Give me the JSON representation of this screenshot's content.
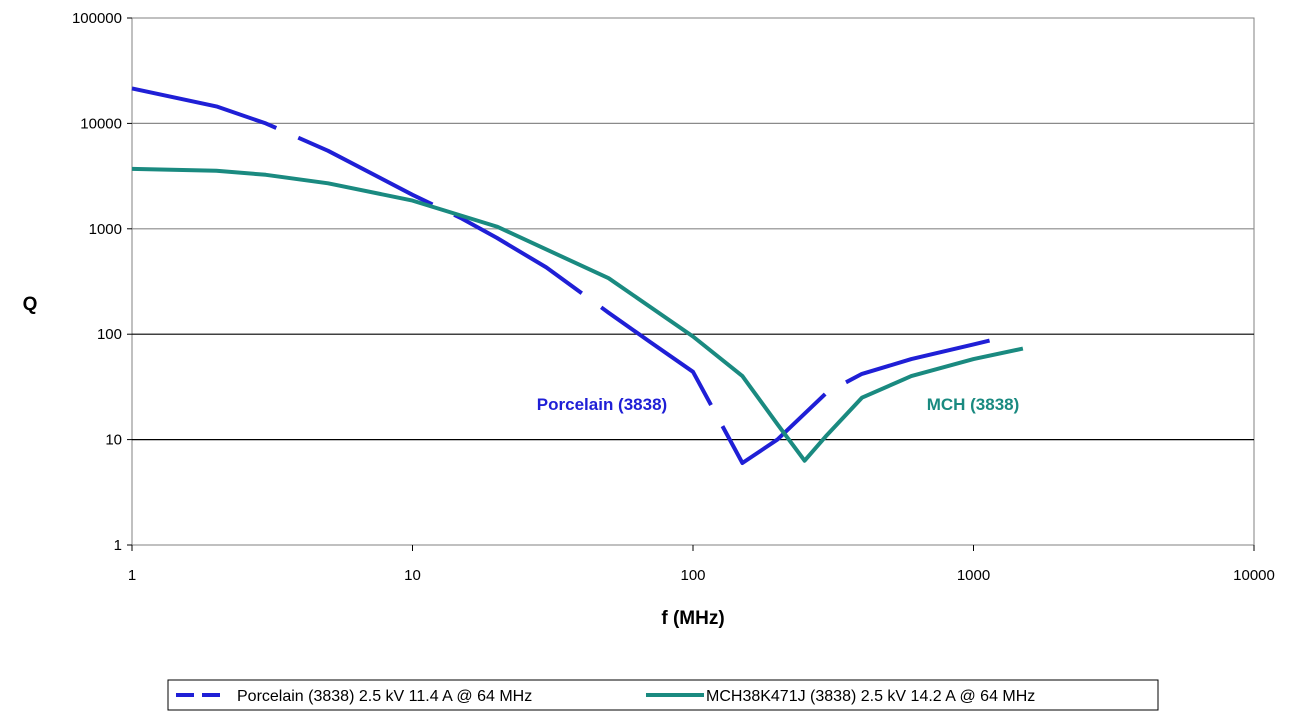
{
  "chart_data": {
    "type": "line",
    "xlabel": "f (MHz)",
    "ylabel": "Q",
    "x_scale": "log",
    "y_scale": "log",
    "xlim": [
      1,
      10000
    ],
    "ylim": [
      1,
      100000
    ],
    "x_ticks": [
      "1",
      "10",
      "100",
      "1000",
      "10000"
    ],
    "y_ticks": [
      "1",
      "10",
      "100",
      "1000",
      "10000",
      "100000"
    ],
    "grid": "horizontal",
    "legend_position": "bottom",
    "series": [
      {
        "name": "Porcelain (3838) 2.5 kV 11.4 A @ 64 MHz",
        "annotation": "Porcelain (3838)",
        "color": "#1f1fd6",
        "dash": "dashed",
        "x": [
          1,
          2,
          3,
          5,
          10,
          15,
          20,
          30,
          50,
          70,
          100,
          120,
          150,
          200,
          300,
          400,
          600,
          1000,
          1350
        ],
        "y": [
          21500,
          14500,
          10000,
          5500,
          2100,
          1250,
          820,
          430,
          160,
          85,
          44,
          18,
          6,
          10,
          28,
          42,
          58,
          80,
          97
        ]
      },
      {
        "name": "MCH38K471J (3838) 2.5 kV 14.2 A @ 64 MHz",
        "annotation": "MCH (3838)",
        "color": "#1a8a80",
        "dash": "solid",
        "x": [
          1,
          2,
          3,
          5,
          10,
          20,
          50,
          100,
          150,
          200,
          250,
          300,
          400,
          600,
          1000,
          1500
        ],
        "y": [
          3700,
          3550,
          3250,
          2700,
          1850,
          1050,
          340,
          95,
          40,
          14,
          6.3,
          11,
          25,
          40,
          58,
          73
        ]
      }
    ]
  }
}
